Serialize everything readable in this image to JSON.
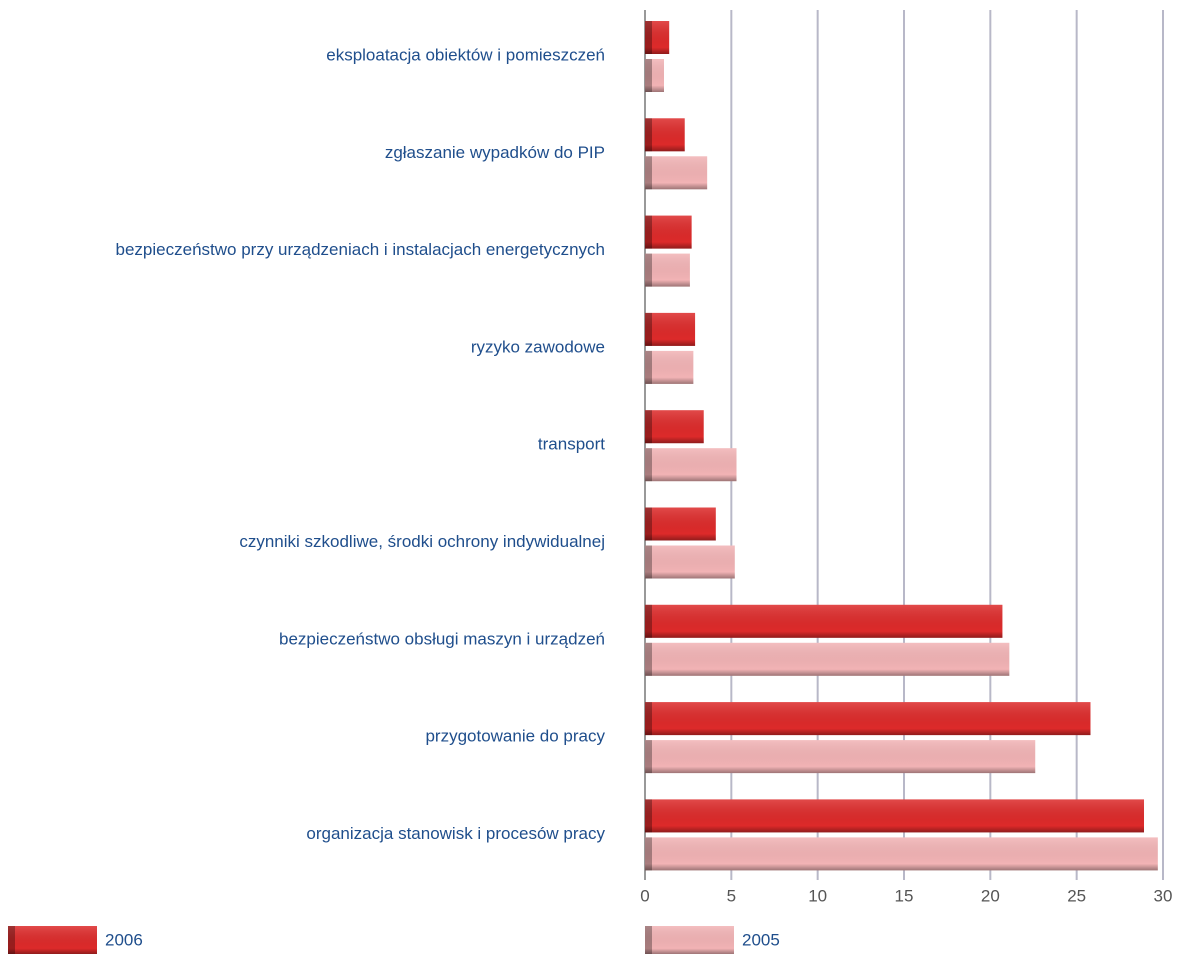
{
  "chart_data": {
    "type": "bar",
    "orientation": "horizontal",
    "categories": [
      "eksploatacja obiektów i pomieszczeń",
      "zgłaszanie wypadków do PIP",
      "bezpieczeństwo przy urządzeniach i instalacjach energetycznych",
      "ryzyko zawodowe",
      "transport",
      "czynniki szkodliwe, środki ochrony indywidualnej",
      "bezpieczeństwo obsługi maszyn i urządzeń",
      "przygotowanie do pracy",
      "organizacja stanowisk i procesów pracy"
    ],
    "series": [
      {
        "name": "2006",
        "color": "#dd2a2a",
        "values": [
          1.4,
          2.3,
          2.7,
          2.9,
          3.4,
          4.1,
          20.7,
          25.8,
          28.9
        ]
      },
      {
        "name": "2005",
        "color": "#f2b3b5",
        "values": [
          1.1,
          3.6,
          2.6,
          2.8,
          5.3,
          5.2,
          21.1,
          22.6,
          29.7
        ]
      }
    ],
    "xlim": [
      0,
      30
    ],
    "xticks": [
      0,
      5,
      10,
      15,
      20,
      25,
      30
    ],
    "grid": true
  }
}
